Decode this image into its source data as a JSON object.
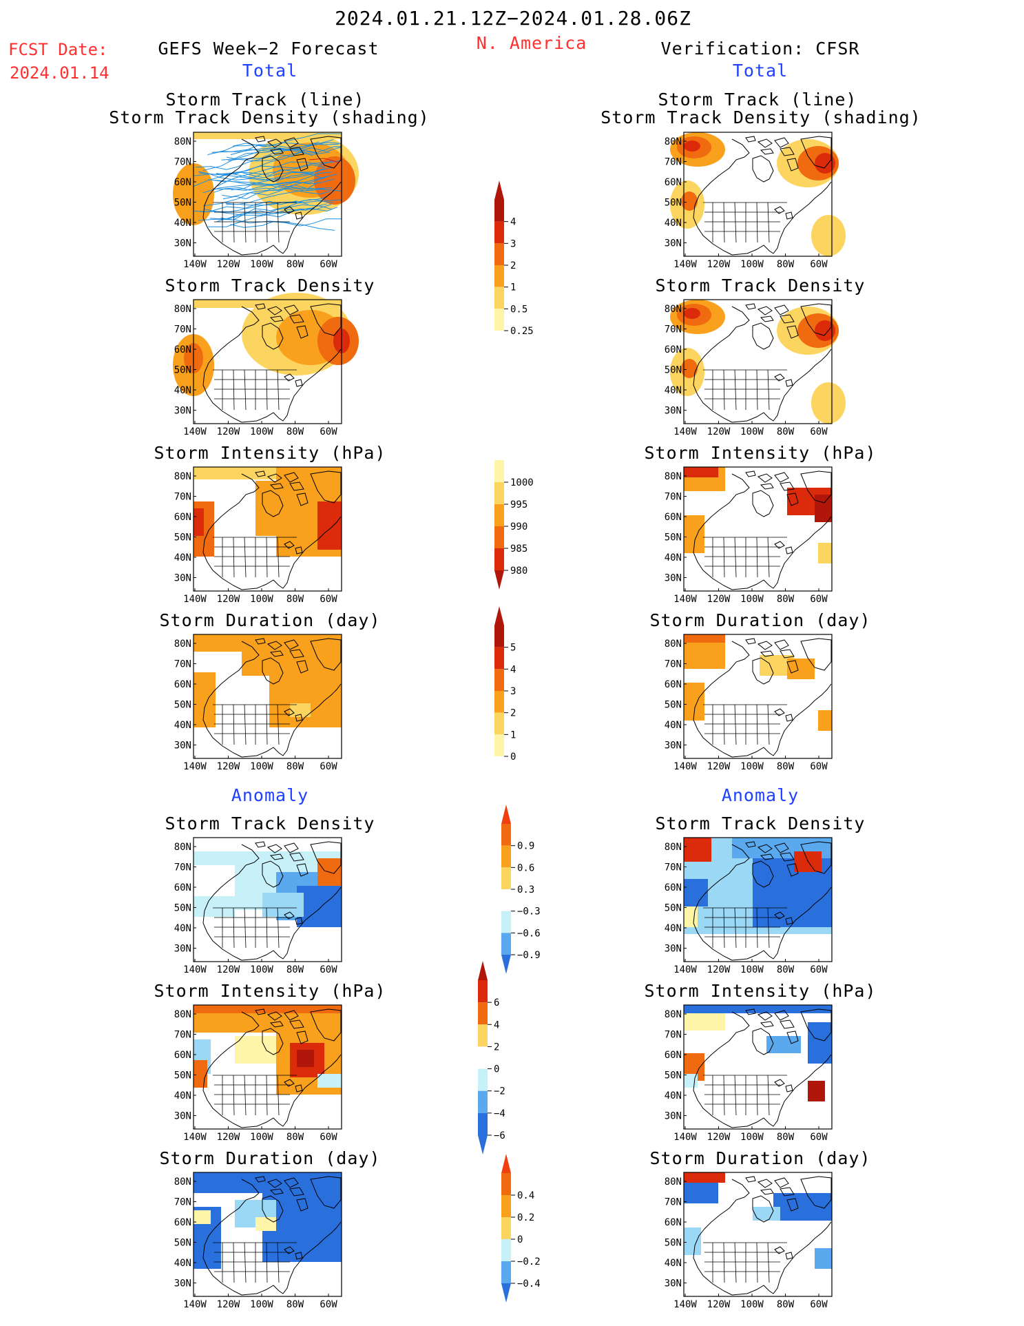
{
  "header": {
    "date_range": "2024.01.21.12Z−2024.01.28.06Z",
    "region": "N. America",
    "fcst_label": "FCST Date:",
    "fcst_date": "2024.01.14",
    "left_title": "GEFS Week−2 Forecast",
    "right_title": "Verification: CFSR",
    "total_label": "Total",
    "anomaly_label": "Anomaly"
  },
  "panel_titles": {
    "track_line": "Storm Track (line)",
    "track_shading": "Storm Track Density (shading)",
    "density": "Storm Track Density",
    "intensity": "Storm Intensity (hPa)",
    "duration": "Storm Duration (day)"
  },
  "axes": {
    "lat_labels": [
      "80N",
      "70N",
      "60N",
      "50N",
      "40N",
      "30N"
    ],
    "lon_labels": [
      "140W",
      "120W",
      "100W",
      "80W",
      "60W"
    ]
  },
  "colorbars": {
    "density_total": {
      "labels": [
        "4",
        "3",
        "2",
        "1",
        "0.5",
        "0.25"
      ]
    },
    "intensity_total": {
      "labels": [
        "1000",
        "995",
        "990",
        "985",
        "980"
      ]
    },
    "duration_total": {
      "labels": [
        "5",
        "4",
        "3",
        "2",
        "1",
        "0"
      ]
    },
    "density_anom": {
      "labels": [
        "0.9",
        "0.6",
        "0.3",
        "−0.3",
        "−0.6",
        "−0.9"
      ]
    },
    "intensity_anom": {
      "labels": [
        "6",
        "4",
        "2",
        "0",
        "−2",
        "−4",
        "−6"
      ]
    },
    "duration_anom": {
      "labels": [
        "0.4",
        "0.2",
        "0",
        "−0.2",
        "−0.4"
      ]
    }
  },
  "colors": {
    "red_text": "#ff3030",
    "blue_text": "#2040ff",
    "warm_scale": [
      "#fff5a8",
      "#fcd561",
      "#f9a11d",
      "#f06a10",
      "#dc2b0b",
      "#b0160a"
    ],
    "cool_scale": [
      "#c8f0f8",
      "#9ad8f5",
      "#5aa8ee",
      "#2a70dc",
      "#1650c0"
    ],
    "track_line": "#1e8ee0"
  }
}
